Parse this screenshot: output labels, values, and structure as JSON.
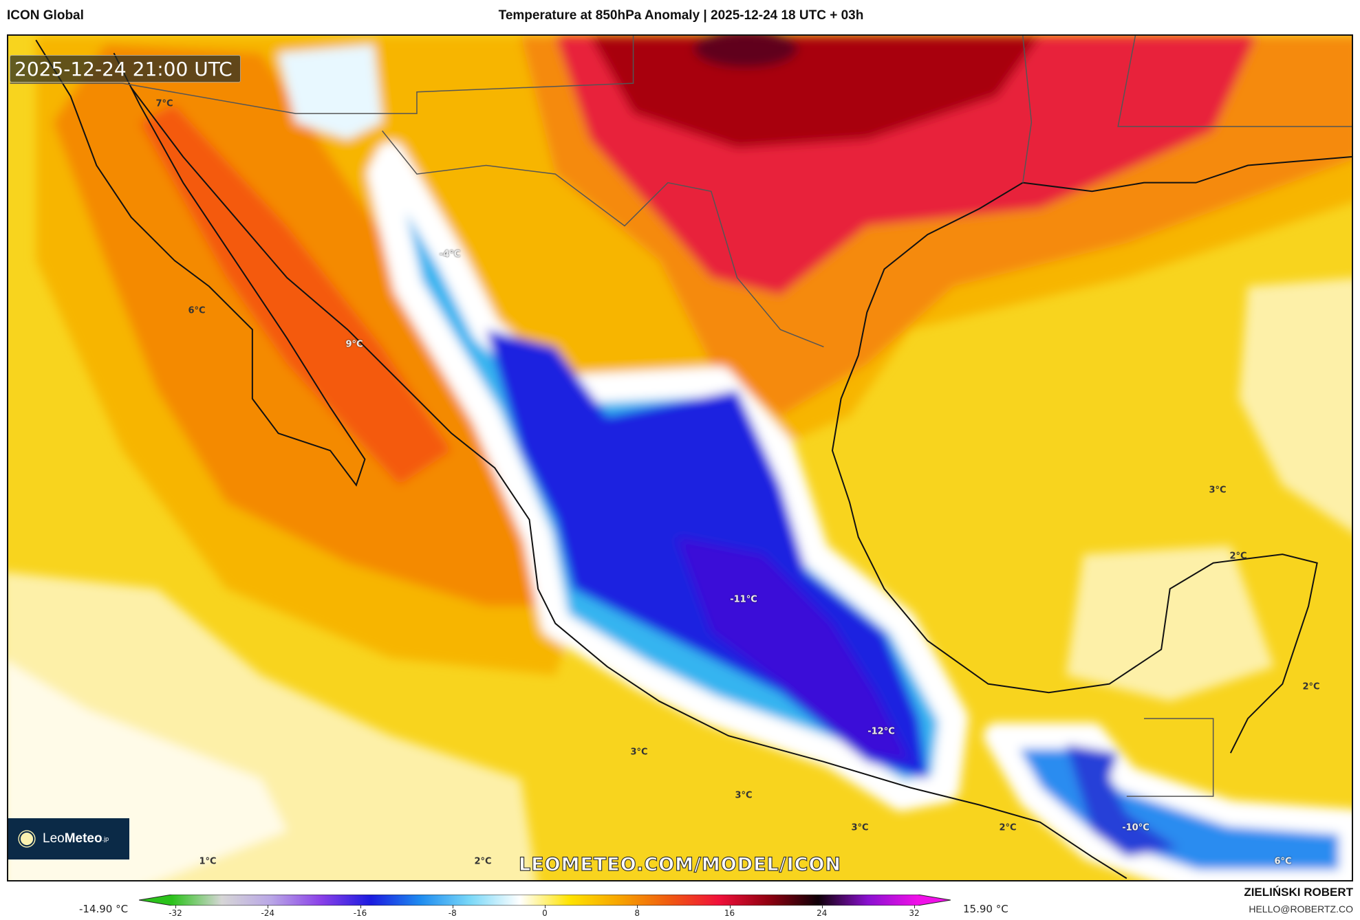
{
  "header": {
    "model": "ICON Global",
    "title": "Temperature at 850hPa Anomaly | 2025-12-24 18 UTC + 03h"
  },
  "map": {
    "valid_time": "2025-12-24 21:00 UTC",
    "labels": [
      "7°C",
      "-4°C",
      "6°C",
      "9°C",
      "3°C",
      "2°C",
      "-11°C",
      "2°C",
      "-12°C",
      "3°C",
      "3°C",
      "3°C",
      "2°C",
      "-10°C",
      "1°C",
      "6°C",
      "2°C"
    ],
    "watermark": "LEOMETEO.COM/MODEL/ICON",
    "logo": {
      "name_light": "Leo",
      "name_bold": "Meteo",
      "suffix": ".jp",
      "icon": "sun-icon"
    }
  },
  "colorbar": {
    "min_label": "-14.90 °C",
    "max_label": "15.90 °C",
    "ticks": [
      "-32",
      "-24",
      "-16",
      "-8",
      "0",
      "8",
      "16",
      "24",
      "32"
    ],
    "range": [
      -32,
      32
    ],
    "colors": [
      "#2bc21b",
      "#d6d6d6",
      "#b9a6e6",
      "#8a40e8",
      "#1b1be0",
      "#1e8cf0",
      "#7ad8f8",
      "#ffffff",
      "#ffe300",
      "#f7a400",
      "#f05a10",
      "#f0103a",
      "#900010",
      "#100008",
      "#8a10d0",
      "#f010e8"
    ]
  },
  "credits": {
    "author": "ZIELIŃSKI ROBERT",
    "email": "HELLO@ROBERTZ.CO"
  }
}
